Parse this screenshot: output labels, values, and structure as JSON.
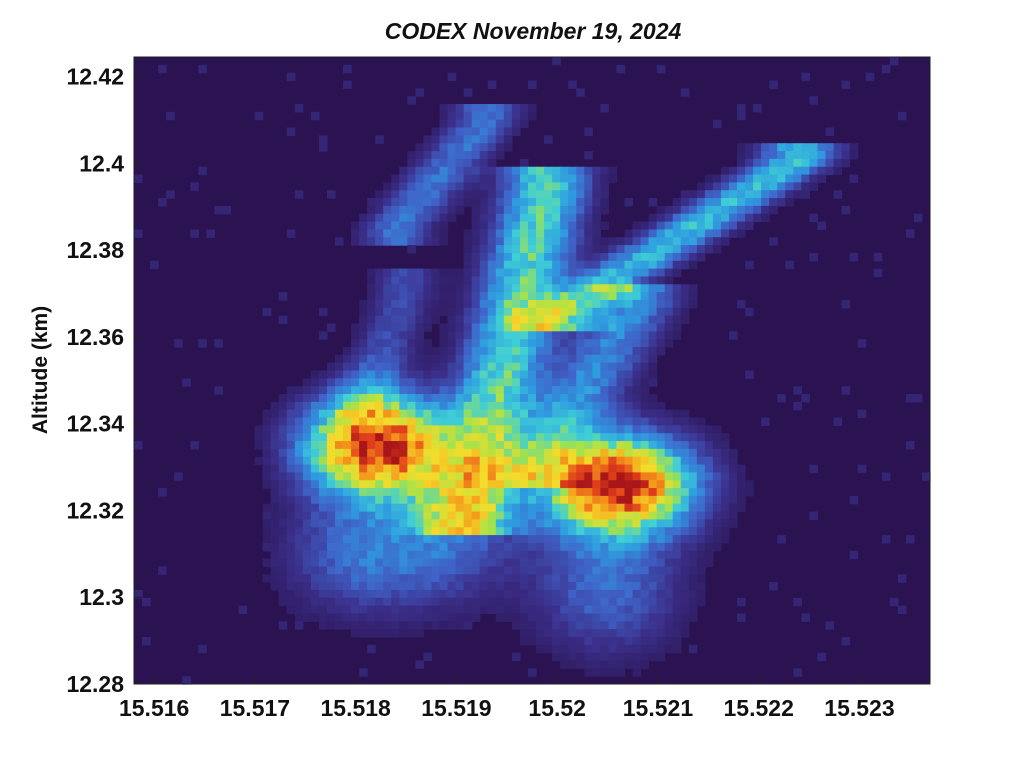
{
  "chart_data": {
    "type": "heatmap",
    "title": "CODEX November 19, 2024",
    "xlabel": "",
    "ylabel": "Altitude (km)",
    "xlim": [
      15.5158,
      15.5237
    ],
    "ylim": [
      12.28,
      12.4245
    ],
    "x_ticks": [
      "15.516",
      "15.517",
      "15.518",
      "15.519",
      "15.52",
      "15.521",
      "15.522",
      "15.523"
    ],
    "x_tick_values": [
      15.516,
      15.517,
      15.518,
      15.519,
      15.52,
      15.521,
      15.522,
      15.523
    ],
    "y_ticks": [
      "12.42",
      "12.4",
      "12.38",
      "12.36",
      "12.34",
      "12.32",
      "12.3",
      "12.28"
    ],
    "y_tick_values": [
      12.42,
      12.4,
      12.38,
      12.36,
      12.34,
      12.32,
      12.3,
      12.28
    ],
    "colormap": [
      "#2a1350",
      "#3b2f8a",
      "#3f63c8",
      "#2f9be0",
      "#3fcfd5",
      "#a6e24a",
      "#f4dc2b",
      "#f49a1b",
      "#e2401a",
      "#a8161a"
    ],
    "background_color": "#2a1350",
    "grid": false,
    "features": [
      {
        "kind": "gaussian",
        "x": 15.5182,
        "y": 12.335,
        "sx": 0.00048,
        "sy": 0.0078,
        "amp": 1.0
      },
      {
        "kind": "gaussian",
        "x": 15.5206,
        "y": 12.326,
        "sx": 0.00052,
        "sy": 0.0078,
        "amp": 1.0
      },
      {
        "kind": "gaussian",
        "x": 15.5181,
        "y": 12.31,
        "sx": 0.00055,
        "sy": 0.01,
        "amp": 0.26
      },
      {
        "kind": "gaussian",
        "x": 15.5205,
        "y": 12.302,
        "sx": 0.00052,
        "sy": 0.011,
        "amp": 0.24
      },
      {
        "kind": "gaussian",
        "x": 15.519,
        "y": 12.318,
        "sx": 0.00045,
        "sy": 0.012,
        "amp": 0.22
      },
      {
        "kind": "band",
        "x1": 15.5191,
        "y1": 12.318,
        "x2": 15.5199,
        "y2": 12.395,
        "sx": 0.0003,
        "amp": 0.48
      },
      {
        "kind": "band",
        "x1": 15.52,
        "y1": 12.365,
        "x2": 15.5224,
        "y2": 12.401,
        "sx": 0.00028,
        "amp": 0.42
      },
      {
        "kind": "band",
        "x1": 15.5198,
        "y1": 12.33,
        "x2": 15.5208,
        "y2": 12.368,
        "sx": 0.0003,
        "amp": 0.3
      },
      {
        "kind": "band",
        "x1": 15.5184,
        "y1": 12.385,
        "x2": 15.5193,
        "y2": 12.41,
        "sx": 0.00025,
        "amp": 0.26
      },
      {
        "kind": "band",
        "x1": 15.5181,
        "y1": 12.345,
        "x2": 15.5185,
        "y2": 12.372,
        "sx": 0.00022,
        "amp": 0.18
      }
    ]
  }
}
